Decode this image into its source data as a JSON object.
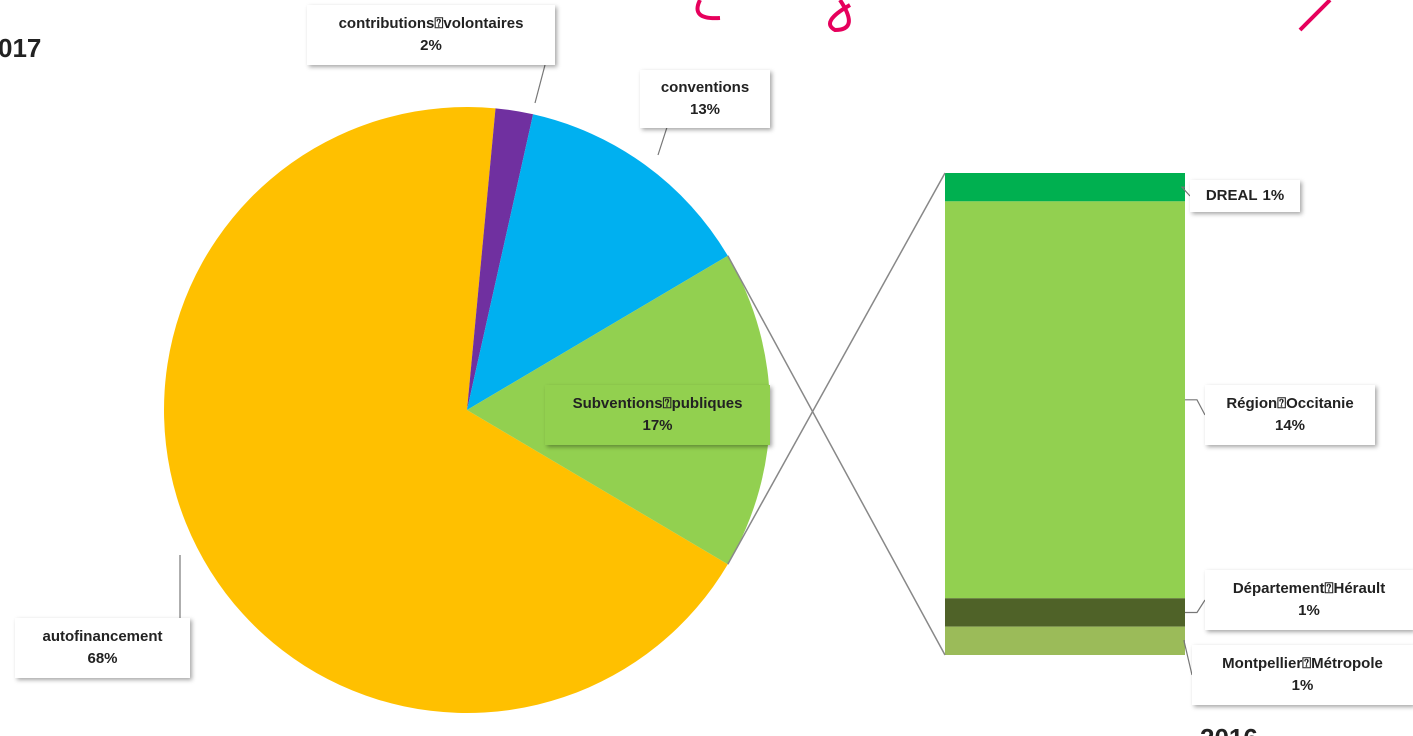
{
  "chart_data": {
    "type": "pie-of-bar",
    "annotations": [
      "017",
      "2016"
    ],
    "categories": [
      "autofinancement",
      "contributions⍰volontaires",
      "conventions",
      "Subventions⍰publiques"
    ],
    "values": [
      68,
      2,
      13,
      17
    ],
    "value_labels": [
      "68%",
      "2%",
      "13%",
      "17%"
    ],
    "colors": [
      "#FFC000",
      "#7030A0",
      "#00B0F0",
      "#92D050"
    ],
    "breakdown": {
      "categories": [
        "DREAL",
        "Région⍰Occitanie",
        "Département⍰Hérault",
        "Montpellier⍰Métropole"
      ],
      "values": [
        1,
        14,
        1,
        1
      ],
      "value_labels": [
        "1%",
        "14%",
        "1%",
        "1%"
      ],
      "colors": [
        "#00B050",
        "#92D050",
        "#4F6228",
        "#9BBB59"
      ]
    }
  }
}
